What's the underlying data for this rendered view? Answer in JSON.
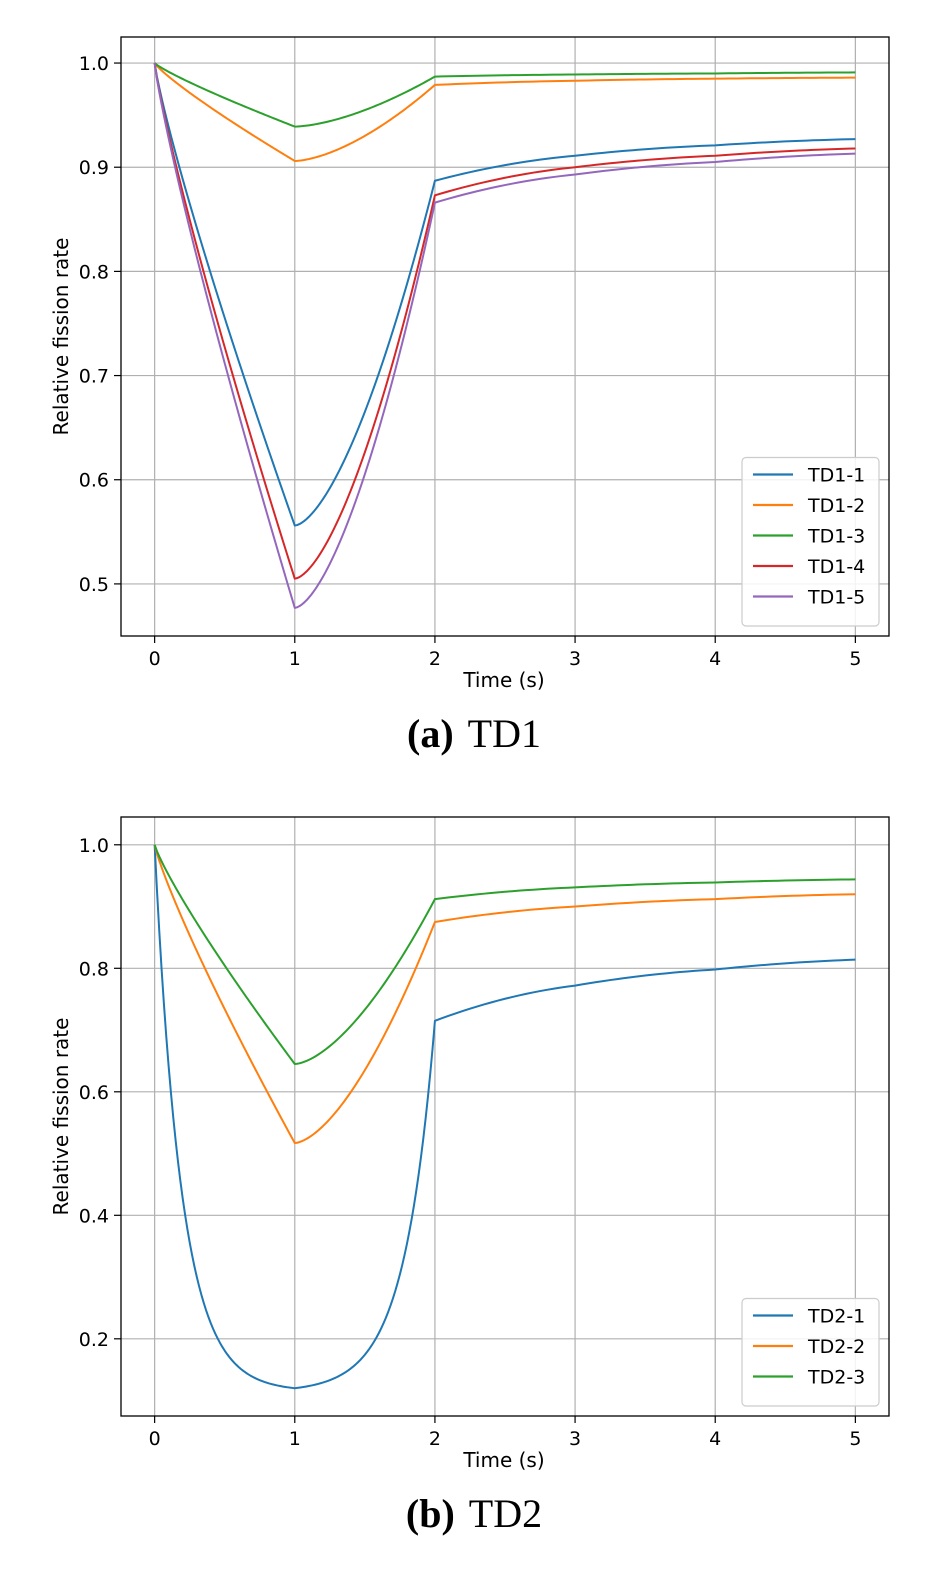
{
  "chart_data": [
    {
      "type": "line",
      "caption_tag": "(a)",
      "caption_name": "TD1",
      "xlabel": "Time (s)",
      "ylabel": "Relative fission rate",
      "xlim": [
        -0.24,
        5.24
      ],
      "ylim": [
        0.45,
        1.025
      ],
      "xticks": [
        0,
        1,
        2,
        3,
        4,
        5
      ],
      "xtick_labels": [
        "0",
        "1",
        "2",
        "3",
        "4",
        "5"
      ],
      "yticks": [
        0.5,
        0.6,
        0.7,
        0.8,
        0.9,
        1.0
      ],
      "ytick_labels": [
        "0.5",
        "0.6",
        "0.7",
        "0.8",
        "0.9",
        "1.0"
      ],
      "grid": true,
      "legend_position": "lower-right",
      "series": [
        {
          "name": "TD1-1",
          "color": "#1f77b4",
          "curve": "v",
          "x": [
            0,
            1,
            2,
            3,
            4,
            5
          ],
          "y": [
            1.0,
            0.556,
            0.887,
            0.911,
            0.921,
            0.927
          ]
        },
        {
          "name": "TD1-2",
          "color": "#ff7f0e",
          "curve": "v",
          "x": [
            0,
            1,
            2,
            3,
            4,
            5
          ],
          "y": [
            1.0,
            0.906,
            0.979,
            0.983,
            0.985,
            0.986
          ]
        },
        {
          "name": "TD1-3",
          "color": "#2ca02c",
          "curve": "v",
          "x": [
            0,
            1,
            2,
            3,
            4,
            5
          ],
          "y": [
            1.0,
            0.939,
            0.987,
            0.989,
            0.99,
            0.991
          ]
        },
        {
          "name": "TD1-4",
          "color": "#d62728",
          "curve": "v",
          "x": [
            0,
            1,
            2,
            3,
            4,
            5
          ],
          "y": [
            1.0,
            0.505,
            0.873,
            0.9,
            0.911,
            0.918
          ]
        },
        {
          "name": "TD1-5",
          "color": "#9467bd",
          "curve": "v",
          "x": [
            0,
            1,
            2,
            3,
            4,
            5
          ],
          "y": [
            1.0,
            0.477,
            0.866,
            0.893,
            0.905,
            0.913
          ]
        }
      ]
    },
    {
      "type": "line",
      "caption_tag": "(b)",
      "caption_name": "TD2",
      "xlabel": "Time (s)",
      "ylabel": "Relative fission rate",
      "xlim": [
        -0.24,
        5.24
      ],
      "ylim": [
        0.075,
        1.045
      ],
      "xticks": [
        0,
        1,
        2,
        3,
        4,
        5
      ],
      "xtick_labels": [
        "0",
        "1",
        "2",
        "3",
        "4",
        "5"
      ],
      "yticks": [
        0.2,
        0.4,
        0.6,
        0.8,
        1.0
      ],
      "ytick_labels": [
        "0.2",
        "0.4",
        "0.6",
        "0.8",
        "1.0"
      ],
      "grid": true,
      "legend_position": "lower-right",
      "series": [
        {
          "name": "TD2-1",
          "color": "#1f77b4",
          "curve": "u",
          "x": [
            0,
            1,
            2,
            3,
            4,
            5
          ],
          "y": [
            1.0,
            0.12,
            0.715,
            0.772,
            0.798,
            0.814
          ]
        },
        {
          "name": "TD2-2",
          "color": "#ff7f0e",
          "curve": "v",
          "x": [
            0,
            1,
            2,
            3,
            4,
            5
          ],
          "y": [
            1.0,
            0.517,
            0.875,
            0.9,
            0.912,
            0.92
          ]
        },
        {
          "name": "TD2-3",
          "color": "#2ca02c",
          "curve": "v",
          "x": [
            0,
            1,
            2,
            3,
            4,
            5
          ],
          "y": [
            1.0,
            0.645,
            0.912,
            0.931,
            0.939,
            0.944
          ]
        }
      ]
    }
  ]
}
